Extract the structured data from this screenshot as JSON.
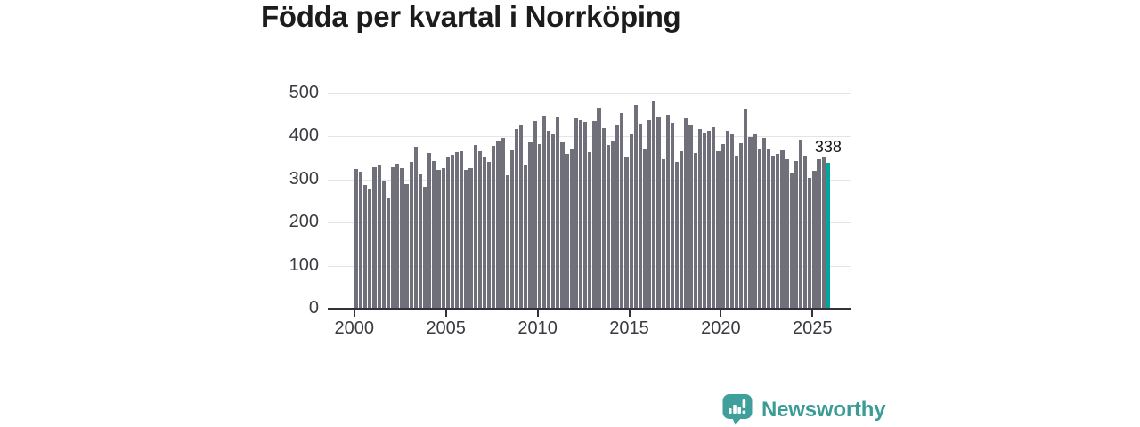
{
  "title": "Födda per kvartal i Norrköping",
  "logo": {
    "text": "Newsworthy",
    "icon": "newsworthy-speech-bubble-chart-icon"
  },
  "colors": {
    "bar": "#70707a",
    "highlight": "#00a69c",
    "gridline": "#e3e3e8",
    "axis": "#32323a",
    "title_text": "#1c1c1e",
    "axis_text": "#3a3a40",
    "logo_teal": "#3b9b97"
  },
  "chart_data": {
    "type": "bar",
    "title": "Födda per kvartal i Norrköping",
    "xlabel": "",
    "ylabel": "",
    "ylim": [
      0,
      500
    ],
    "y_ticks": [
      0,
      100,
      200,
      300,
      400,
      500
    ],
    "x_tick_years": [
      2000,
      2005,
      2010,
      2015,
      2020,
      2025
    ],
    "grid": "horizontal",
    "legend": "none",
    "series_name": "Födda per kvartal",
    "highlight_last_bar": true,
    "last_value_label": "338",
    "categories": [
      "2000Q1",
      "2000Q2",
      "2000Q3",
      "2000Q4",
      "2001Q1",
      "2001Q2",
      "2001Q3",
      "2001Q4",
      "2002Q1",
      "2002Q2",
      "2002Q3",
      "2002Q4",
      "2003Q1",
      "2003Q2",
      "2003Q3",
      "2003Q4",
      "2004Q1",
      "2004Q2",
      "2004Q3",
      "2004Q4",
      "2005Q1",
      "2005Q2",
      "2005Q3",
      "2005Q4",
      "2006Q1",
      "2006Q2",
      "2006Q3",
      "2006Q4",
      "2007Q1",
      "2007Q2",
      "2007Q3",
      "2007Q4",
      "2008Q1",
      "2008Q2",
      "2008Q3",
      "2008Q4",
      "2009Q1",
      "2009Q2",
      "2009Q3",
      "2009Q4",
      "2010Q1",
      "2010Q2",
      "2010Q3",
      "2010Q4",
      "2011Q1",
      "2011Q2",
      "2011Q3",
      "2011Q4",
      "2012Q1",
      "2012Q2",
      "2012Q3",
      "2012Q4",
      "2013Q1",
      "2013Q2",
      "2013Q3",
      "2013Q4",
      "2014Q1",
      "2014Q2",
      "2014Q3",
      "2014Q4",
      "2015Q1",
      "2015Q2",
      "2015Q3",
      "2015Q4",
      "2016Q1",
      "2016Q2",
      "2016Q3",
      "2016Q4",
      "2017Q1",
      "2017Q2",
      "2017Q3",
      "2017Q4",
      "2018Q1",
      "2018Q2",
      "2018Q3",
      "2018Q4",
      "2019Q1",
      "2019Q2",
      "2019Q3",
      "2019Q4",
      "2020Q1",
      "2020Q2",
      "2020Q3",
      "2020Q4",
      "2021Q1",
      "2021Q2",
      "2021Q3",
      "2021Q4",
      "2022Q1",
      "2022Q2",
      "2022Q3",
      "2022Q4",
      "2023Q1",
      "2023Q2",
      "2023Q3",
      "2023Q4",
      "2024Q1",
      "2024Q2",
      "2024Q3",
      "2024Q4",
      "2025Q1",
      "2025Q2",
      "2025Q3",
      "2025Q4"
    ],
    "values": [
      325,
      318,
      288,
      278,
      329,
      335,
      296,
      256,
      329,
      337,
      326,
      289,
      340,
      377,
      313,
      284,
      362,
      343,
      322,
      327,
      351,
      358,
      363,
      366,
      322,
      327,
      380,
      365,
      353,
      341,
      379,
      391,
      396,
      309,
      367,
      417,
      425,
      335,
      387,
      437,
      382,
      448,
      413,
      406,
      445,
      387,
      359,
      370,
      442,
      438,
      434,
      363,
      436,
      468,
      419,
      381,
      388,
      426,
      454,
      354,
      405,
      473,
      429,
      369,
      439,
      484,
      446,
      348,
      450,
      431,
      341,
      365,
      442,
      425,
      362,
      417,
      410,
      414,
      421,
      365,
      382,
      413,
      405,
      355,
      384,
      463,
      399,
      406,
      372,
      396,
      370,
      355,
      359,
      368,
      348,
      317,
      344,
      392,
      355,
      303,
      320,
      348,
      351,
      338
    ]
  }
}
